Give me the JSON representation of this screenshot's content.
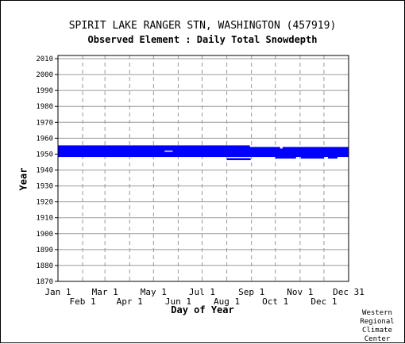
{
  "chart_data": {
    "type": "scatter",
    "title": "SPIRIT LAKE RANGER STN, WASHINGTON   (457919)",
    "subtitle": "Observed Element : Daily Total Snowdepth",
    "xlabel": "Day of Year",
    "ylabel": "Year",
    "xlim": [
      1,
      366
    ],
    "ylim": [
      1870,
      2012
    ],
    "grid": true,
    "series_color": "#0000ff",
    "x_ticks_upper": [
      {
        "label": "Jan 1",
        "day": 1
      },
      {
        "label": "Mar 1",
        "day": 60
      },
      {
        "label": "May 1",
        "day": 121
      },
      {
        "label": "Jul 1",
        "day": 182
      },
      {
        "label": "Sep 1",
        "day": 244
      },
      {
        "label": "Nov 1",
        "day": 305
      },
      {
        "label": "Dec 31",
        "day": 366
      }
    ],
    "x_ticks_lower": [
      {
        "label": "Feb 1",
        "day": 32
      },
      {
        "label": "Apr 1",
        "day": 91
      },
      {
        "label": "Jun 1",
        "day": 152
      },
      {
        "label": "Aug 1",
        "day": 213
      },
      {
        "label": "Oct 1",
        "day": 274
      },
      {
        "label": "Dec 1",
        "day": 335
      }
    ],
    "y_ticks": [
      1870,
      1880,
      1890,
      1900,
      1910,
      1920,
      1930,
      1940,
      1950,
      1960,
      1970,
      1980,
      1990,
      2000,
      2010
    ],
    "observed_years": [
      {
        "year": 1947,
        "day_ranges": [
          [
            213,
            243
          ]
        ]
      },
      {
        "year": 1948,
        "day_ranges": [
          [
            274,
            300
          ],
          [
            306,
            335
          ],
          [
            340,
            352
          ]
        ]
      },
      {
        "year": 1949,
        "day_ranges": [
          [
            1,
            366
          ]
        ]
      },
      {
        "year": 1950,
        "day_ranges": [
          [
            1,
            366
          ]
        ]
      },
      {
        "year": 1951,
        "day_ranges": [
          [
            1,
            366
          ]
        ]
      },
      {
        "year": 1952,
        "day_ranges": [
          [
            1,
            135
          ],
          [
            145,
            366
          ]
        ]
      },
      {
        "year": 1953,
        "day_ranges": [
          [
            1,
            366
          ]
        ]
      },
      {
        "year": 1954,
        "day_ranges": [
          [
            1,
            280
          ],
          [
            283,
            366
          ]
        ]
      },
      {
        "year": 1955,
        "day_ranges": [
          [
            1,
            242
          ]
        ]
      }
    ]
  },
  "credit": "Western Regional Climate Center"
}
